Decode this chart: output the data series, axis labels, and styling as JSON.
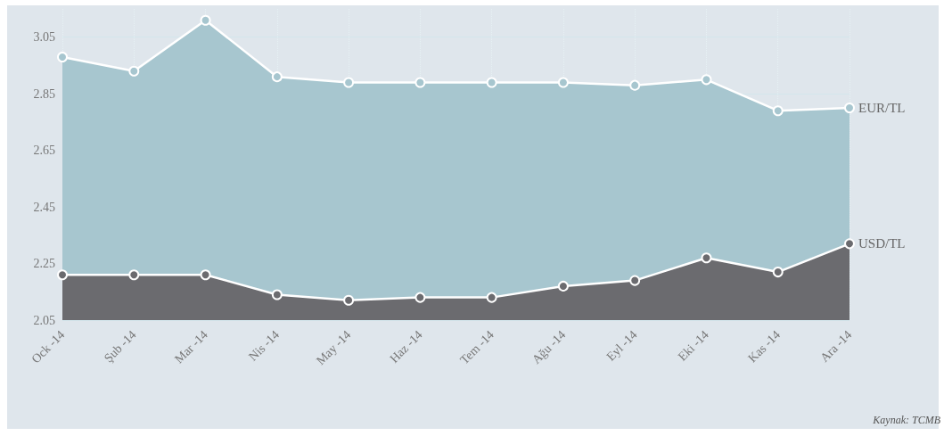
{
  "chart_data": {
    "type": "area",
    "categories": [
      "Ock -14",
      "Şub -14",
      "Mar -14",
      "Nis -14",
      "May -14",
      "Haz -14",
      "Tem -14",
      "Ağu -14",
      "Eyl -14",
      "Eki -14",
      "Kas -14",
      "Ara -14"
    ],
    "series": [
      {
        "name": "EUR/TL",
        "color": "#a7c6cf",
        "values": [
          2.98,
          2.93,
          3.11,
          2.91,
          2.89,
          2.89,
          2.89,
          2.89,
          2.88,
          2.9,
          2.79,
          2.8
        ]
      },
      {
        "name": "USD/TL",
        "color": "#6b6b6f",
        "values": [
          2.21,
          2.21,
          2.21,
          2.14,
          2.12,
          2.13,
          2.13,
          2.17,
          2.19,
          2.27,
          2.22,
          2.32
        ]
      }
    ],
    "ylim": [
      2.05,
      3.15
    ],
    "yticks": [
      2.05,
      2.25,
      2.45,
      2.65,
      2.85,
      3.05
    ],
    "grid": true,
    "legend": "right",
    "marker": "circle",
    "line_style": "solid",
    "annotations": [
      "Kaynak: TCMB"
    ]
  }
}
